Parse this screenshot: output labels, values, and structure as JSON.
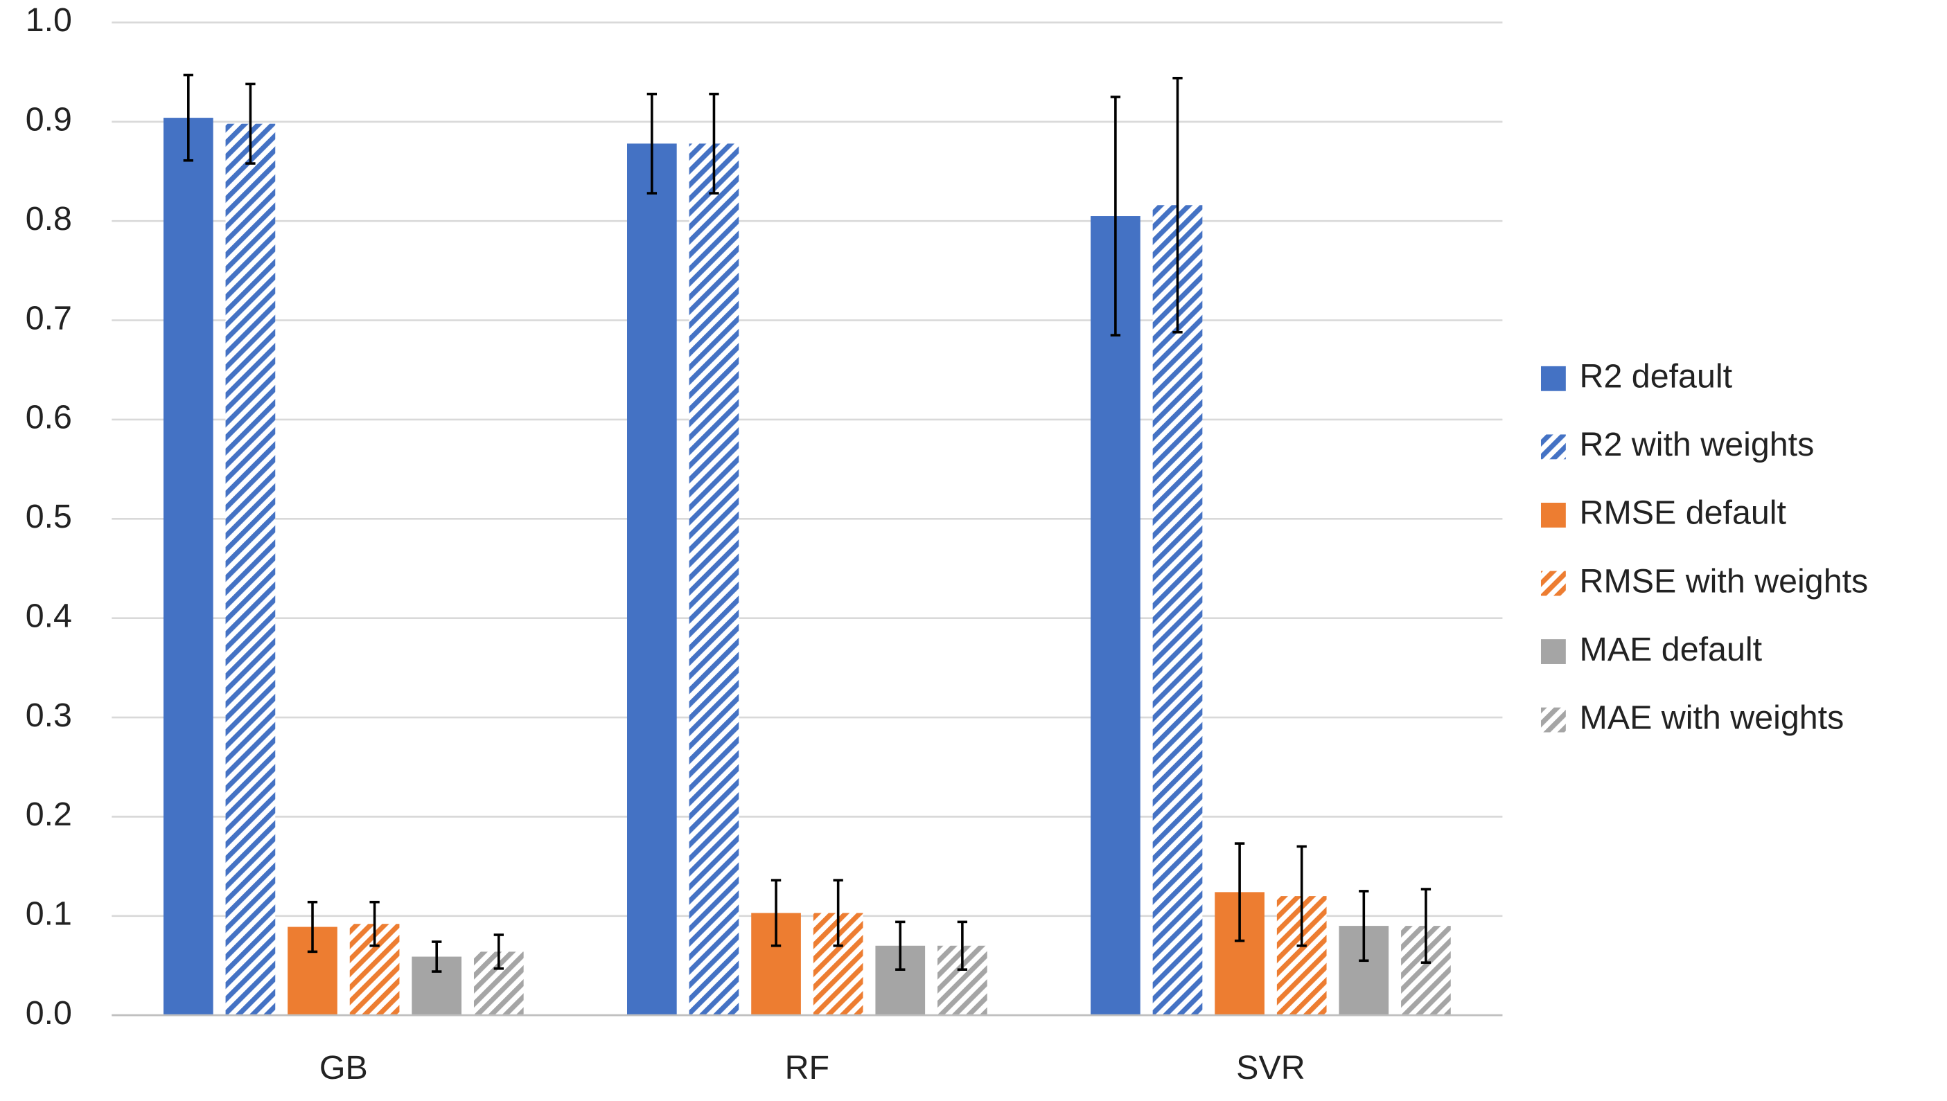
{
  "chart_data": {
    "type": "bar",
    "categories": [
      "GB",
      "RF",
      "SVR"
    ],
    "series": [
      {
        "name": "R2 default",
        "color": "#4472c4",
        "hatch": false,
        "values": [
          0.904,
          0.878,
          0.805
        ],
        "errors": [
          0.043,
          0.05,
          0.12
        ]
      },
      {
        "name": "R2 with weights",
        "color": "#4472c4",
        "hatch": true,
        "values": [
          0.898,
          0.878,
          0.816
        ],
        "errors": [
          0.04,
          0.05,
          0.128
        ]
      },
      {
        "name": "RMSE default",
        "color": "#ed7d31",
        "hatch": false,
        "values": [
          0.089,
          0.103,
          0.124
        ],
        "errors": [
          0.025,
          0.033,
          0.049
        ]
      },
      {
        "name": "RMSE with weights",
        "color": "#ed7d31",
        "hatch": true,
        "values": [
          0.092,
          0.103,
          0.12
        ],
        "errors": [
          0.022,
          0.033,
          0.05
        ]
      },
      {
        "name": "MAE default",
        "color": "#a5a5a5",
        "hatch": false,
        "values": [
          0.059,
          0.07,
          0.09
        ],
        "errors": [
          0.015,
          0.024,
          0.035
        ]
      },
      {
        "name": "MAE with weights",
        "color": "#a5a5a5",
        "hatch": true,
        "values": [
          0.064,
          0.07,
          0.09
        ],
        "errors": [
          0.017,
          0.024,
          0.037
        ]
      }
    ],
    "ylim": [
      0,
      1
    ],
    "yticks": [
      {
        "value": 0,
        "label": "0.0"
      },
      0.1,
      0.2,
      0.3,
      0.4,
      0.5,
      0.6,
      0.7,
      0.8,
      0.9,
      {
        "value": 1,
        "label": "1.0"
      }
    ],
    "grid": true,
    "legend": "right"
  }
}
